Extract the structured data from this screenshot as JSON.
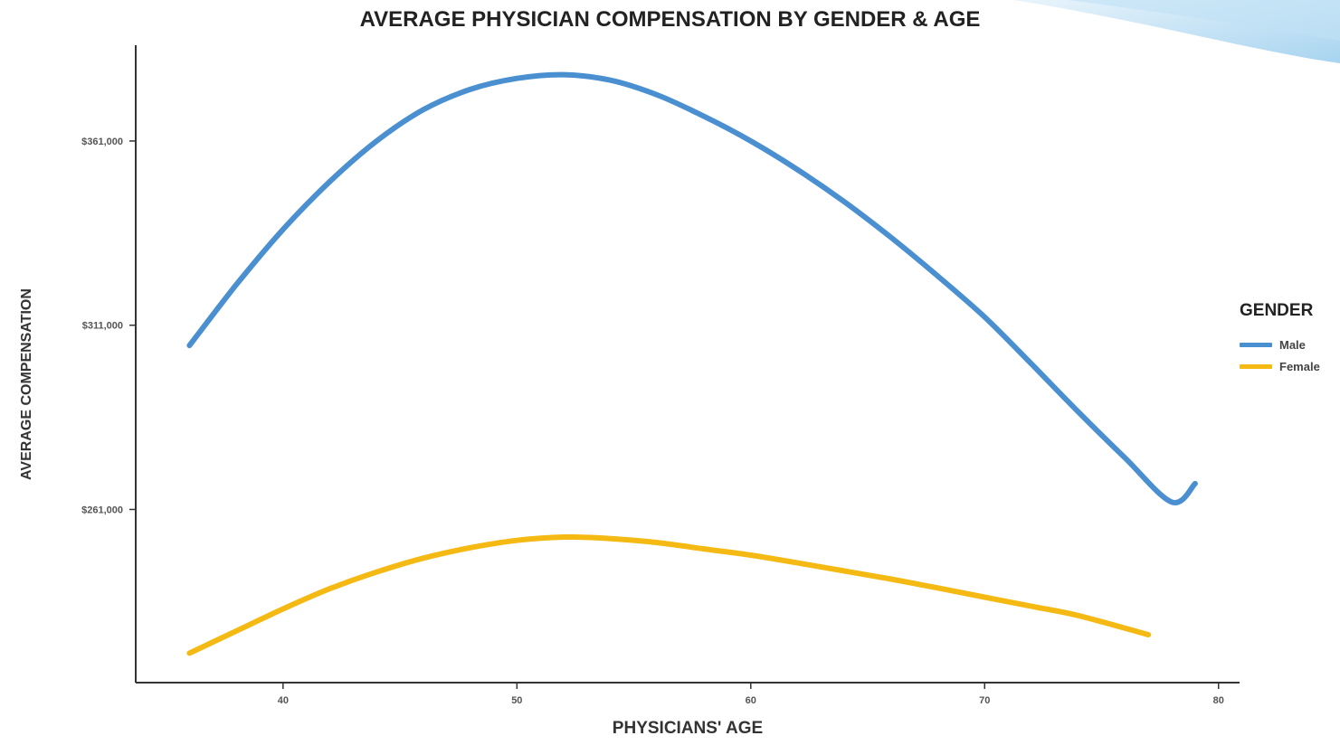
{
  "chart_data": {
    "type": "line",
    "title": "AVERAGE PHYSICIAN COMPENSATION BY GENDER & AGE",
    "xlabel": "PHYSICIANS' AGE",
    "ylabel": "AVERAGE COMPENSATION",
    "x_ticks": [
      40,
      50,
      60,
      70,
      80
    ],
    "x_tick_labels": [
      "40",
      "50",
      "60",
      "70",
      "80"
    ],
    "y_ticks": [
      261000,
      311000,
      361000
    ],
    "y_tick_labels": [
      "$261,000",
      "$311,000",
      "$361,000"
    ],
    "xlim": [
      33.7,
      80.9
    ],
    "ylim": [
      214000,
      387000
    ],
    "grid": false,
    "legend": {
      "title": "GENDER",
      "position": "right"
    },
    "series": [
      {
        "name": "Male",
        "color": "#4a8fd0",
        "x": [
          36,
          38,
          40,
          42,
          44,
          46,
          48,
          50,
          52,
          54,
          56,
          58,
          60,
          62,
          64,
          66,
          68,
          70,
          72,
          74,
          76,
          78,
          79
        ],
        "y": [
          305500,
          322000,
          337000,
          350000,
          361000,
          369500,
          375000,
          378000,
          379000,
          377500,
          373500,
          367700,
          361000,
          353200,
          344500,
          334800,
          324300,
          313200,
          300500,
          287500,
          275000,
          263000,
          268000
        ]
      },
      {
        "name": "Female",
        "color": "#f5b914",
        "x": [
          36,
          38,
          40,
          42,
          44,
          46,
          48,
          50,
          52,
          54,
          56,
          58,
          60,
          62,
          64,
          66,
          68,
          70,
          72,
          74,
          77
        ],
        "y": [
          222000,
          228000,
          234000,
          239500,
          244000,
          247800,
          250600,
          252600,
          253500,
          253100,
          252000,
          250300,
          248600,
          246500,
          244300,
          242100,
          239700,
          237200,
          234700,
          232200,
          227000
        ]
      }
    ]
  }
}
